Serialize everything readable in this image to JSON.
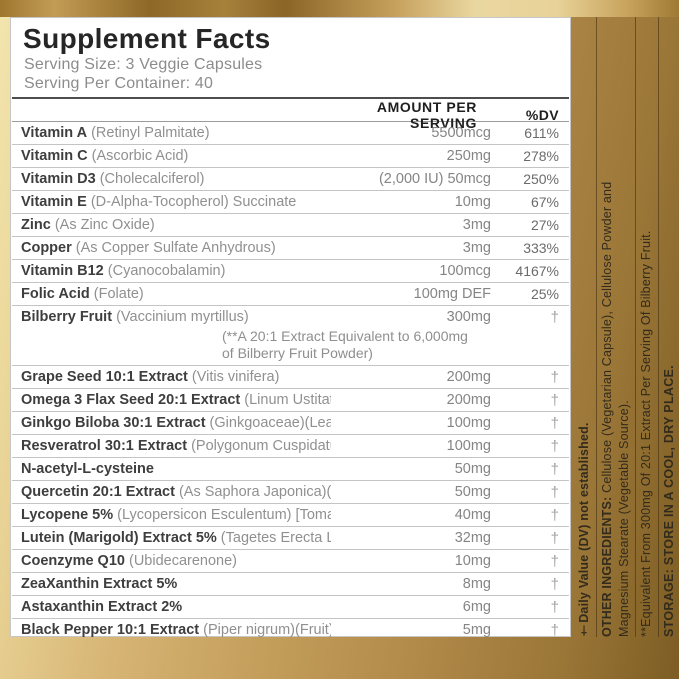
{
  "label": {
    "title": "Supplement Facts",
    "serving_size": "Serving Size: 3 Veggie Capsules",
    "serving_per_container": "Serving Per Container: 40",
    "columns": {
      "amount": "AMOUNT PER SERVING",
      "dv": "%DV"
    },
    "rows": [
      {
        "name": "Vitamin A",
        "desc": " (Retinyl Palmitate)",
        "amount": "5500mcg",
        "dv": "611%"
      },
      {
        "name": "Vitamin C",
        "desc": " (Ascorbic Acid)",
        "amount": "250mg",
        "dv": "278%"
      },
      {
        "name": "Vitamin D3",
        "desc": " (Cholecalciferol)",
        "amount": "(2,000 IU) 50mcg",
        "dv": "250%"
      },
      {
        "name": "Vitamin E",
        "desc": " (D-Alpha-Tocopherol) Succinate",
        "amount": "10mg",
        "dv": "67%"
      },
      {
        "name": "Zinc",
        "desc": " (As Zinc Oxide)",
        "amount": "3mg",
        "dv": "27%"
      },
      {
        "name": "Copper",
        "desc": " (As Copper Sulfate Anhydrous)",
        "amount": "3mg",
        "dv": "333%"
      },
      {
        "name": "Vitamin B12",
        "desc": " (Cyanocobalamin)",
        "amount": "100mcg",
        "dv": "4167%"
      },
      {
        "name": "Folic Acid",
        "desc": " (Folate)",
        "amount": "100mg DEF",
        "dv": "25%"
      },
      {
        "name": "Bilberry Fruit",
        "desc": " (Vaccinium myrtillus)",
        "amount": "300mg",
        "dv": "†",
        "note": [
          "(**A 20:1 Extract Equivalent to 6,000mg",
          "of Bilberry Fruit Powder)"
        ]
      },
      {
        "name": "Grape Seed 10:1 Extract",
        "desc": " (Vitis vinifera)",
        "amount": "200mg",
        "dv": "†"
      },
      {
        "name": "Omega 3 Flax Seed 20:1 Extract",
        "desc": " (Linum Ustitatissium)",
        "amount": "200mg",
        "dv": "†"
      },
      {
        "name": "Ginkgo Biloba 30:1 Extract",
        "desc": " (Ginkgoaceae)(Leaf)",
        "amount": "100mg",
        "dv": "†"
      },
      {
        "name": "Resveratrol 30:1 Extract",
        "desc": " (Polygonum Cuspidatum)(Root)",
        "amount": "100mg",
        "dv": "†"
      },
      {
        "name": "N-acetyl-L-cysteine",
        "desc": "",
        "amount": "50mg",
        "dv": "†"
      },
      {
        "name": "Quercetin 20:1 Extract",
        "desc": " (As Saphora Japonica)(Seed)",
        "amount": "50mg",
        "dv": "†"
      },
      {
        "name": "Lycopene 5%",
        "desc": " (Lycopersicon Esculentum) [Tomato Skin]",
        "amount": "40mg",
        "dv": "†"
      },
      {
        "name": "Lutein (Marigold) Extract 5%",
        "desc": " (Tagetes Erecta L.) [Flower]",
        "amount": "32mg",
        "dv": "†"
      },
      {
        "name": "Coenzyme Q10",
        "desc": " (Ubidecarenone)",
        "amount": "10mg",
        "dv": "†"
      },
      {
        "name": "ZeaXanthin Extract 5%",
        "desc": "",
        "amount": "8mg",
        "dv": "†"
      },
      {
        "name": "Astaxanthin Extract 2%",
        "desc": "",
        "amount": "6mg",
        "dv": "†"
      },
      {
        "name": "Black Pepper 10:1 Extract",
        "desc": " (Piper nigrum)(Fruit)",
        "amount": "5mg",
        "dv": "†"
      }
    ],
    "sidebar": {
      "daily_value_note": "†Daily Value (DV) not established.",
      "other_ingredients_label": "OTHER INGREDIENTS:",
      "other_ingredients_line1": " Cellulose (Vegetarian Capsule), Cellulose Powder and",
      "other_ingredients_line2": "Magnesium Stearate (Vegetable Source).",
      "equivalent_note": "**Equivalent From 300mg Of 20:1 Extract Per Serving Of Bilberry Fruit.",
      "storage_label": "STORAGE:",
      "storage_text": " STORE IN A COOL, DRY PLACE."
    }
  }
}
